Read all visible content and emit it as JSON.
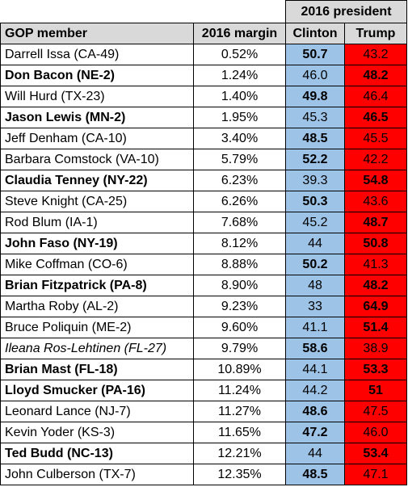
{
  "header": {
    "group_label": "2016 president",
    "col_member": "GOP member",
    "col_margin": "2016 margin",
    "col_clinton": "Clinton",
    "col_trump": "Trump"
  },
  "colors": {
    "clinton_cell": "#9dc3e6",
    "trump_cell": "#ff0000",
    "header_fill": "#d9d9d9"
  },
  "rows": [
    {
      "member": "Darrell Issa (CA-49)",
      "margin": "0.52%",
      "clinton": "50.7",
      "trump": "43.2",
      "member_bold": false,
      "member_italic": false,
      "winner": "clinton"
    },
    {
      "member": "Don Bacon (NE-2)",
      "margin": "1.24%",
      "clinton": "46.0",
      "trump": "48.2",
      "member_bold": true,
      "member_italic": false,
      "winner": "trump"
    },
    {
      "member": "Will Hurd (TX-23)",
      "margin": "1.40%",
      "clinton": "49.8",
      "trump": "46.4",
      "member_bold": false,
      "member_italic": false,
      "winner": "clinton"
    },
    {
      "member": "Jason Lewis (MN-2)",
      "margin": "1.95%",
      "clinton": "45.3",
      "trump": "46.5",
      "member_bold": true,
      "member_italic": false,
      "winner": "trump"
    },
    {
      "member": "Jeff Denham (CA-10)",
      "margin": "3.40%",
      "clinton": "48.5",
      "trump": "45.5",
      "member_bold": false,
      "member_italic": false,
      "winner": "clinton"
    },
    {
      "member": "Barbara Comstock (VA-10)",
      "margin": "5.79%",
      "clinton": "52.2",
      "trump": "42.2",
      "member_bold": false,
      "member_italic": false,
      "winner": "clinton"
    },
    {
      "member": "Claudia Tenney (NY-22)",
      "margin": "6.23%",
      "clinton": "39.3",
      "trump": "54.8",
      "member_bold": true,
      "member_italic": false,
      "winner": "trump"
    },
    {
      "member": "Steve Knight (CA-25)",
      "margin": "6.26%",
      "clinton": "50.3",
      "trump": "43.6",
      "member_bold": false,
      "member_italic": false,
      "winner": "clinton"
    },
    {
      "member": "Rod Blum (IA-1)",
      "margin": "7.68%",
      "clinton": "45.2",
      "trump": "48.7",
      "member_bold": false,
      "member_italic": false,
      "winner": "trump"
    },
    {
      "member": "John Faso (NY-19)",
      "margin": "8.12%",
      "clinton": "44",
      "trump": "50.8",
      "member_bold": true,
      "member_italic": false,
      "winner": "trump"
    },
    {
      "member": "Mike Coffman (CO-6)",
      "margin": "8.88%",
      "clinton": "50.2",
      "trump": "41.3",
      "member_bold": false,
      "member_italic": false,
      "winner": "clinton"
    },
    {
      "member": "Brian Fitzpatrick (PA-8)",
      "margin": "8.90%",
      "clinton": "48",
      "trump": "48.2",
      "member_bold": true,
      "member_italic": false,
      "winner": "trump"
    },
    {
      "member": "Martha Roby (AL-2)",
      "margin": "9.23%",
      "clinton": "33",
      "trump": "64.9",
      "member_bold": false,
      "member_italic": false,
      "winner": "trump"
    },
    {
      "member": "Bruce Poliquin (ME-2)",
      "margin": "9.60%",
      "clinton": "41.1",
      "trump": "51.4",
      "member_bold": false,
      "member_italic": false,
      "winner": "trump"
    },
    {
      "member": "Ileana Ros-Lehtinen (FL-27)",
      "margin": "9.79%",
      "clinton": "58.6",
      "trump": "38.9",
      "member_bold": false,
      "member_italic": true,
      "winner": "clinton"
    },
    {
      "member": "Brian Mast (FL-18)",
      "margin": "10.89%",
      "clinton": "44.1",
      "trump": "53.3",
      "member_bold": true,
      "member_italic": false,
      "winner": "trump"
    },
    {
      "member": "Lloyd Smucker (PA-16)",
      "margin": "11.24%",
      "clinton": "44.2",
      "trump": "51",
      "member_bold": true,
      "member_italic": false,
      "winner": "trump"
    },
    {
      "member": "Leonard Lance (NJ-7)",
      "margin": "11.27%",
      "clinton": "48.6",
      "trump": "47.5",
      "member_bold": false,
      "member_italic": false,
      "winner": "clinton"
    },
    {
      "member": "Kevin Yoder (KS-3)",
      "margin": "11.65%",
      "clinton": "47.2",
      "trump": "46.0",
      "member_bold": false,
      "member_italic": false,
      "winner": "clinton"
    },
    {
      "member": "Ted Budd  (NC-13)",
      "margin": "12.21%",
      "clinton": "44",
      "trump": "53.4",
      "member_bold": true,
      "member_italic": false,
      "winner": "trump"
    },
    {
      "member": "John Culberson (TX-7)",
      "margin": "12.35%",
      "clinton": "48.5",
      "trump": "47.1",
      "member_bold": false,
      "member_italic": false,
      "winner": "clinton"
    }
  ]
}
